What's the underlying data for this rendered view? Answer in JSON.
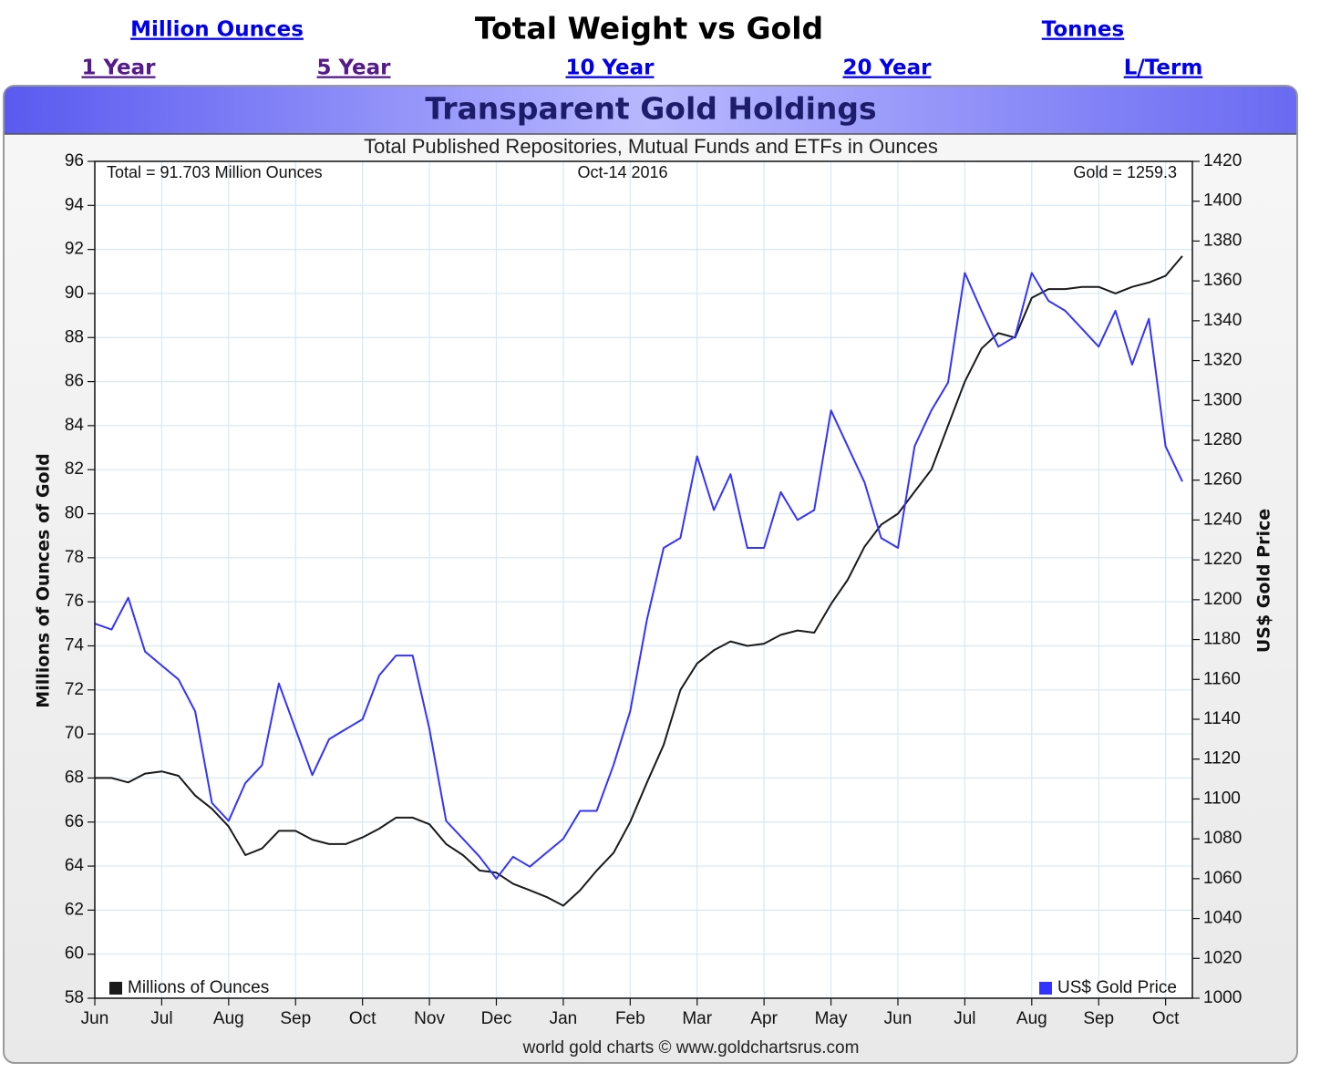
{
  "page": {
    "title": "Total Weight vs Gold",
    "units_links": [
      "Million Ounces",
      "Tonnes"
    ],
    "period_links": [
      "1 Year",
      "5 Year",
      "10 Year",
      "20 Year",
      "L/Term"
    ]
  },
  "chart_data": {
    "type": "line",
    "title": "Transparent Gold Holdings",
    "subtitle": "Total Published Repositories, Mutual Funds and ETFs in Ounces",
    "annotations": [
      "Total = 91.703 Million Ounces",
      "Oct-14  2016",
      "Gold = 1259.3"
    ],
    "source": "world gold charts © www.goldchartsrus.com",
    "ylabel": "Millions of Ounces of Gold",
    "y2label": "US$ Gold Price",
    "x": [
      0,
      0.25,
      0.5,
      0.75,
      1,
      1.25,
      1.5,
      1.75,
      2,
      2.25,
      2.5,
      2.75,
      3,
      3.25,
      3.5,
      3.75,
      4,
      4.25,
      4.5,
      4.75,
      5,
      5.25,
      5.5,
      5.75,
      6,
      6.25,
      6.5,
      6.75,
      7,
      7.25,
      7.5,
      7.75,
      8,
      8.25,
      8.5,
      8.75,
      9,
      9.25,
      9.5,
      9.75,
      10,
      10.25,
      10.5,
      10.75,
      11,
      11.25,
      11.5,
      11.75,
      12,
      12.25,
      12.5,
      12.75,
      13,
      13.25,
      13.5,
      13.75,
      14,
      14.25,
      14.5,
      14.75,
      15,
      15.25,
      15.5,
      15.75,
      16,
      16.25
    ],
    "xlim": [
      0,
      16.4
    ],
    "xticks": [
      {
        "value": 0,
        "label": "Jun"
      },
      {
        "value": 1,
        "label": "Jul"
      },
      {
        "value": 2,
        "label": "Aug"
      },
      {
        "value": 3,
        "label": "Sep"
      },
      {
        "value": 4,
        "label": "Oct"
      },
      {
        "value": 5,
        "label": "Nov"
      },
      {
        "value": 6,
        "label": "Dec"
      },
      {
        "value": 7,
        "label": "Jan"
      },
      {
        "value": 8,
        "label": "Feb"
      },
      {
        "value": 9,
        "label": "Mar"
      },
      {
        "value": 10,
        "label": "Apr"
      },
      {
        "value": 11,
        "label": "May"
      },
      {
        "value": 12,
        "label": "Jun"
      },
      {
        "value": 13,
        "label": "Jul"
      },
      {
        "value": 14,
        "label": "Aug"
      },
      {
        "value": 15,
        "label": "Sep"
      },
      {
        "value": 16,
        "label": "Oct"
      }
    ],
    "ylim": [
      58,
      96
    ],
    "yticks": [
      58,
      60,
      62,
      64,
      66,
      68,
      70,
      72,
      74,
      76,
      78,
      80,
      82,
      84,
      86,
      88,
      90,
      92,
      94,
      96
    ],
    "y2lim": [
      1000,
      1420
    ],
    "y2ticks": [
      1000,
      1020,
      1040,
      1060,
      1080,
      1100,
      1120,
      1140,
      1160,
      1180,
      1200,
      1220,
      1240,
      1260,
      1280,
      1300,
      1320,
      1340,
      1360,
      1380,
      1400,
      1420
    ],
    "grid": true,
    "legend": "bottom",
    "series": [
      {
        "name": "Millions of Ounces",
        "color": "#1a1a1a",
        "values": [
          68.0,
          68.0,
          67.8,
          68.2,
          68.3,
          68.1,
          67.2,
          66.6,
          65.8,
          64.5,
          64.8,
          65.6,
          65.6,
          65.2,
          65.0,
          65.0,
          65.3,
          65.7,
          66.2,
          66.2,
          65.9,
          65.0,
          64.5,
          63.8,
          63.7,
          63.2,
          62.9,
          62.6,
          62.2,
          62.9,
          63.8,
          64.6,
          66.0,
          67.8,
          69.5,
          72.0,
          73.2,
          73.8,
          74.2,
          74.0,
          74.1,
          74.5,
          74.7,
          74.6,
          75.9,
          77.0,
          78.5,
          79.5,
          80.0,
          81.0,
          82.0,
          84.0,
          86.0,
          87.5,
          88.2,
          88.0,
          89.8,
          90.2,
          90.2,
          90.3,
          90.3,
          90.0,
          90.3,
          90.5,
          90.8,
          91.7
        ]
      },
      {
        "name": "US$ Gold Price",
        "color": "#3333ff",
        "axis": "y2",
        "values": [
          1188,
          1185,
          1201,
          1174,
          1167,
          1160,
          1144,
          1098,
          1089,
          1108,
          1117,
          1158,
          1135,
          1112,
          1130,
          1135,
          1140,
          1162,
          1172,
          1172,
          1135,
          1089,
          1080,
          1071,
          1060,
          1071,
          1066,
          1073,
          1080,
          1094,
          1094,
          1117,
          1144,
          1190,
          1226,
          1231,
          1272,
          1245,
          1263,
          1226,
          1226,
          1254,
          1240,
          1245,
          1295,
          1277,
          1259,
          1231,
          1226,
          1277,
          1295,
          1309,
          1364,
          1345,
          1327,
          1332,
          1364,
          1350,
          1345,
          1336,
          1327,
          1345,
          1318,
          1341,
          1277,
          1259.3
        ]
      }
    ]
  }
}
